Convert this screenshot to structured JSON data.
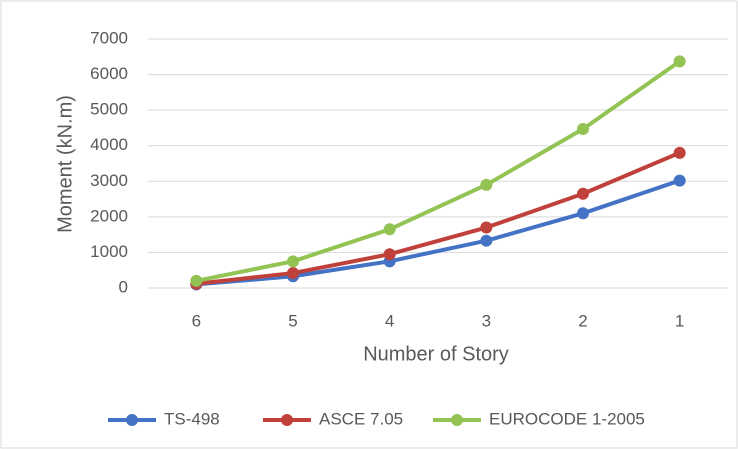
{
  "chart_data": {
    "type": "line",
    "x_label": "Number of Story",
    "y_label": "Moment (kN.m)",
    "categories": [
      "6",
      "5",
      "4",
      "3",
      "2",
      "1"
    ],
    "series": [
      {
        "name": "TS-498",
        "color": "#4472c4",
        "values": [
          100,
          330,
          750,
          1330,
          2100,
          3020
        ]
      },
      {
        "name": "ASCE 7.05",
        "color": "#c0413b",
        "values": [
          120,
          420,
          950,
          1700,
          2650,
          3800
        ]
      },
      {
        "name": "EUROCODE 1-2005",
        "color": "#92c353",
        "values": [
          200,
          750,
          1650,
          2900,
          4470,
          6370
        ]
      }
    ],
    "ylim": [
      0,
      7000
    ],
    "yticks": [
      0,
      1000,
      2000,
      3000,
      4000,
      5000,
      6000,
      7000
    ],
    "grid": true,
    "legend": "bottom"
  }
}
